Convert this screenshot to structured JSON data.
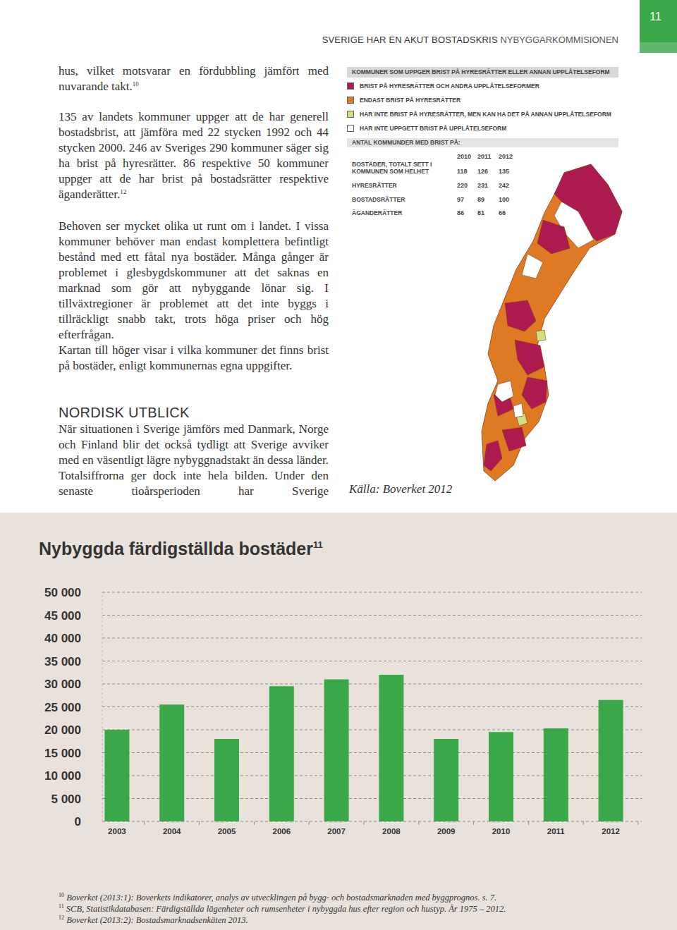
{
  "header": {
    "page_number": "11",
    "running_title_bold": "SVERIGE HAR EN AKUT BOSTADSKRIS",
    "running_title": "NYBYGGARKOMMISIONEN"
  },
  "body": {
    "paragraphs": [
      {
        "text": "hus, vilket motsvarar en fördubbling jämfört med nuvarande takt.",
        "note": "10"
      },
      {
        "text": "135 av landets kommuner uppger att de har generell bostadsbrist, att jämföra med 22 stycken 1992 och 44 stycken 2000. 246 av Sveriges 290 kommuner säger sig ha brist på hyresrätter. 86 respektive 50 kommuner uppger att de har brist på bostadsrätter respektive äganderätter.",
        "note": "12"
      },
      {
        "text": "Behoven ser mycket olika ut runt om i landet. I vissa kommuner behöver man endast komplettera befintligt bestånd med ett fåtal nya bostäder. Många gånger är problemet i glesbygdskommuner att det saknas en marknad som gör att nybyggande lönar sig. I tillväxtregioner är problemet att det inte byggs i tillräckligt snabb takt, trots höga priser och hög efterfrågan."
      },
      {
        "text": "Kartan till höger visar i vilka kommuner det finns brist på bostäder, enligt kommunernas egna uppgifter."
      }
    ],
    "heading": "NORDISK UTBLICK",
    "paragraph_after": "När situationen i Sverige jämförs med Danmark, Norge och Finland blir det också tydligt att Sverige avviker med en väsentligt lägre nybyggnadstakt än dessa länder. Totalsiffrorna ger dock inte hela bilden. Under den senaste tioårsperioden har Sverige"
  },
  "map": {
    "title": "KOMMUNER SOM UPPGER BRIST PÅ HYRESRÄTTER ELLER ANNAN UPPLÅTELSEFORM",
    "legend": [
      {
        "label": "BRIST PÅ HYRESRÄTTER OCH ANDRA UPPLÅTELSEFORMER",
        "color": "#ad1a50"
      },
      {
        "label": "ENDAST BRIST PÅ HYRESRÄTTER",
        "color": "#de7a24"
      },
      {
        "label": "HAR INTE BRIST PÅ HYRESRÄTTER, MEN KAN HA DET PÅ ANNAN UPPLÅTELSEFORM",
        "color": "#d3de82"
      },
      {
        "label": "HAR INTE UPPGETT BRIST PÅ UPPLÅTELSEFORM",
        "color": "#ffffff"
      }
    ],
    "table": {
      "title": "ANTAL KOMMUNDER MED BRIST PÅ:",
      "columns": [
        "2010",
        "2011",
        "2012"
      ],
      "rows": [
        {
          "label": "BOSTÄDER, TOTALT SETT I KOMMUNEN SOM HELHET",
          "values": [
            118,
            126,
            135
          ]
        },
        {
          "label": "HYRESRÄTTER",
          "values": [
            220,
            231,
            242
          ]
        },
        {
          "label": "BOSTADSRÄTTER",
          "values": [
            97,
            89,
            100
          ]
        },
        {
          "label": "ÄGANDERÄTTER",
          "values": [
            86,
            81,
            66
          ]
        }
      ]
    },
    "source": "Källa: Boverket 2012"
  },
  "chart_data": {
    "type": "bar",
    "title": "Nybyggda färdigställda bostäder",
    "title_note": "11",
    "categories": [
      "2003",
      "2004",
      "2005",
      "2006",
      "2007",
      "2008",
      "2009",
      "2010",
      "2011",
      "2012"
    ],
    "values": [
      20000,
      25500,
      18000,
      29500,
      31000,
      32000,
      18000,
      19500,
      20300,
      26500
    ],
    "color": "#3aa748",
    "ylim": [
      0,
      50000
    ],
    "yticks": [
      0,
      {
        "value": 5000,
        "label": "5 000"
      },
      {
        "value": 10000,
        "label": "10 000"
      },
      {
        "value": 15000,
        "label": "15 000"
      },
      {
        "value": 20000,
        "label": "20 000"
      },
      {
        "value": 25000,
        "label": "25 000"
      },
      {
        "value": 30000,
        "label": "30 000"
      },
      {
        "value": 35000,
        "label": "35 000"
      },
      {
        "value": 40000,
        "label": "40 000"
      },
      {
        "value": 45000,
        "label": "45 000"
      },
      {
        "value": 50000,
        "label": "50 000"
      }
    ],
    "grid": true
  },
  "footnotes": [
    {
      "number": "10",
      "text": "Boverket (2013:1): Boverkets indikatorer, analys av utvecklingen på bygg- och bostadsmarknaden med byggprognos. s. 7."
    },
    {
      "number": "11",
      "text": "SCB, Statistikdatabasen: Färdigställda lägenheter och rumsenheter i nybyggda hus efter region och hustyp. År 1975 – 2012."
    },
    {
      "number": "12",
      "text": "Boverket (2013:2): Bostadsmarknadsenkäten 2013."
    }
  ]
}
